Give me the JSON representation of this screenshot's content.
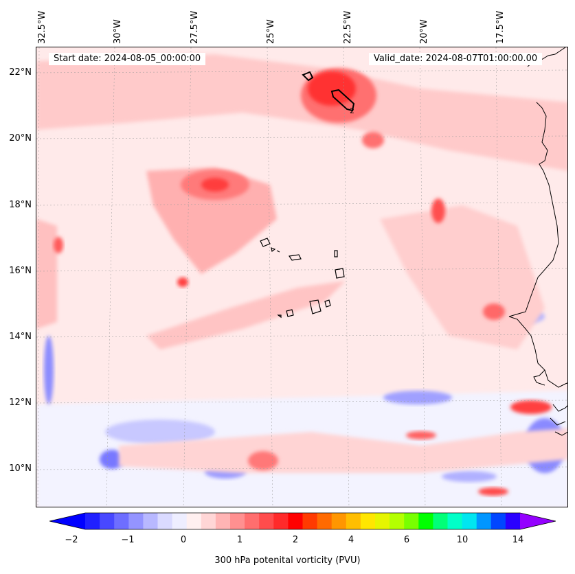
{
  "map": {
    "start_date": "Start date: 2024-08-05_00:00:00",
    "valid_date": "Valid_date: 2024-08-07T01:00:00.00",
    "lon_labels": [
      "32.5°W",
      "30°W",
      "27.5°W",
      "25°W",
      "22.5°W",
      "20°W",
      "17.5°W"
    ],
    "lat_labels": [
      "22°N",
      "20°N",
      "18°N",
      "16°N",
      "14°N",
      "12°N",
      "10°N"
    ],
    "contour_label": "2",
    "colorbar": {
      "label": "300 hPa potenital vorticity (PVU)",
      "ticks": [
        "−2",
        "−1",
        "0",
        "1",
        "2",
        "4",
        "6",
        "10",
        "14"
      ],
      "colors": [
        "#0000ff",
        "#2020ff",
        "#4848ff",
        "#6e6eff",
        "#9494ff",
        "#b8b8ff",
        "#dadaff",
        "#eeeeff",
        "#fff0f0",
        "#ffd6d6",
        "#ffb4b4",
        "#ff9090",
        "#ff6e6e",
        "#ff4c4c",
        "#ff2a2a",
        "#ff0000",
        "#ff3a00",
        "#ff6a00",
        "#ff9600",
        "#ffbe00",
        "#ffe600",
        "#e6f500",
        "#b4ff00",
        "#78ff00",
        "#00ff00",
        "#00ff78",
        "#00ffc8",
        "#00e6f0",
        "#0096ff",
        "#0046ff",
        "#2a00ff",
        "#9400ff"
      ]
    }
  }
}
